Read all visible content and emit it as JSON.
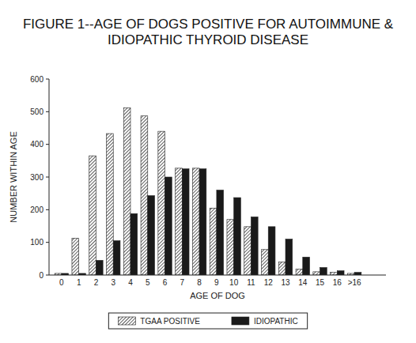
{
  "chart_data": {
    "type": "bar",
    "title": "FIGURE 1--AGE OF DOGS POSITIVE FOR AUTOIMMUNE & IDIOPATHIC THYROID DISEASE",
    "x_label": "AGE OF DOG",
    "y_label": "NUMBER WITHIN AGE",
    "categories": [
      "0",
      "1",
      "2",
      "3",
      "4",
      "5",
      "6",
      "7",
      "8",
      "9",
      "10",
      "11",
      "12",
      "13",
      "14",
      "15",
      "16",
      ">16"
    ],
    "series": [
      {
        "name": "TGAA POSITIVE",
        "color": "#333333",
        "values": [
          5,
          113,
          365,
          433,
          512,
          487,
          440,
          327,
          327,
          205,
          170,
          148,
          78,
          40,
          18,
          10,
          8,
          5
        ]
      },
      {
        "name": "IDIOPATHIC",
        "color": "#1a1a1a",
        "values": [
          5,
          5,
          45,
          105,
          188,
          243,
          300,
          325,
          325,
          260,
          237,
          178,
          148,
          110,
          55,
          23,
          13,
          8
        ]
      }
    ],
    "ylim": [
      0,
      600
    ],
    "yticks": [
      0,
      100,
      200,
      300,
      400,
      500,
      600
    ],
    "grid": false,
    "legend": "bottom"
  }
}
